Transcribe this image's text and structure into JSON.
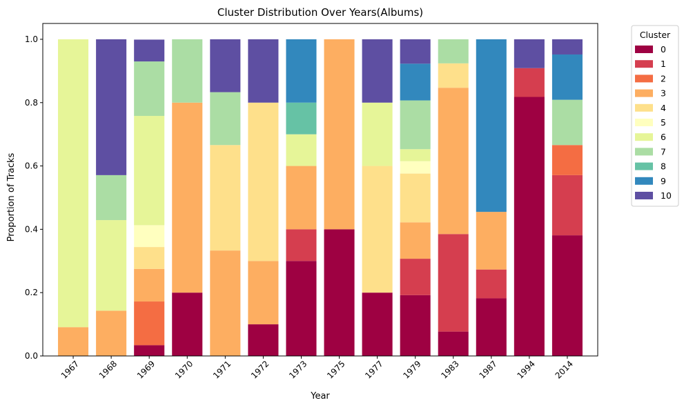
{
  "chart_data": {
    "type": "bar",
    "stacked": true,
    "title": "Cluster Distribution Over Years(Albums)",
    "xlabel": "Year",
    "ylabel": "Proportion of Tracks",
    "ylim": [
      0,
      1.05
    ],
    "yticks": [
      "0.0",
      "0.2",
      "0.4",
      "0.6",
      "0.8",
      "1.0"
    ],
    "grid": false,
    "legend": {
      "title": "Cluster",
      "placement": "outside-right-top"
    },
    "categories": [
      "1967",
      "1968",
      "1969",
      "1970",
      "1971",
      "1972",
      "1973",
      "1975",
      "1977",
      "1979",
      "1983",
      "1987",
      "1994",
      "2014"
    ],
    "series": [
      {
        "name": "0",
        "color": "#9e0142",
        "values": [
          0,
          0,
          0.034,
          0.2,
          0,
          0.1,
          0.3,
          0.4,
          0.2,
          0.192,
          0.077,
          0.182,
          0.818,
          0.381
        ]
      },
      {
        "name": "1",
        "color": "#d53e4f",
        "values": [
          0,
          0,
          0,
          0,
          0,
          0,
          0.1,
          0,
          0,
          0.115,
          0.308,
          0.091,
          0.091,
          0.19
        ]
      },
      {
        "name": "2",
        "color": "#f46d43",
        "values": [
          0,
          0,
          0.138,
          0,
          0,
          0,
          0,
          0,
          0,
          0,
          0,
          0,
          0,
          0.095
        ]
      },
      {
        "name": "3",
        "color": "#fdae61",
        "values": [
          0.091,
          0.143,
          0.103,
          0.6,
          0.333,
          0.2,
          0.2,
          0.6,
          0,
          0.115,
          0.462,
          0.182,
          0,
          0
        ]
      },
      {
        "name": "4",
        "color": "#fee08b",
        "values": [
          0,
          0,
          0.069,
          0,
          0.333,
          0.5,
          0,
          0,
          0.4,
          0.154,
          0.077,
          0,
          0,
          0
        ]
      },
      {
        "name": "5",
        "color": "#ffffbf",
        "values": [
          0,
          0,
          0.069,
          0,
          0,
          0,
          0,
          0,
          0,
          0.039,
          0,
          0,
          0,
          0
        ]
      },
      {
        "name": "6",
        "color": "#e6f598",
        "values": [
          0.909,
          0.286,
          0.345,
          0,
          0,
          0,
          0.1,
          0,
          0.2,
          0.038,
          0,
          0,
          0,
          0
        ]
      },
      {
        "name": "7",
        "color": "#abdda4",
        "values": [
          0,
          0.142,
          0.172,
          0.2,
          0.167,
          0,
          0,
          0,
          0,
          0.154,
          0.076,
          0,
          0,
          0.143
        ]
      },
      {
        "name": "8",
        "color": "#66c2a5",
        "values": [
          0,
          0,
          0,
          0,
          0,
          0,
          0.1,
          0,
          0,
          0,
          0,
          0,
          0,
          0
        ]
      },
      {
        "name": "9",
        "color": "#3288bd",
        "values": [
          0,
          0,
          0,
          0,
          0,
          0,
          0.2,
          0,
          0,
          0.116,
          0,
          0.545,
          0,
          0.143
        ]
      },
      {
        "name": "10",
        "color": "#5e4fa2",
        "values": [
          0,
          0.429,
          0.069,
          0,
          0.167,
          0.2,
          0,
          0,
          0.2,
          0.077,
          0,
          0,
          0.091,
          0.048
        ]
      }
    ]
  }
}
